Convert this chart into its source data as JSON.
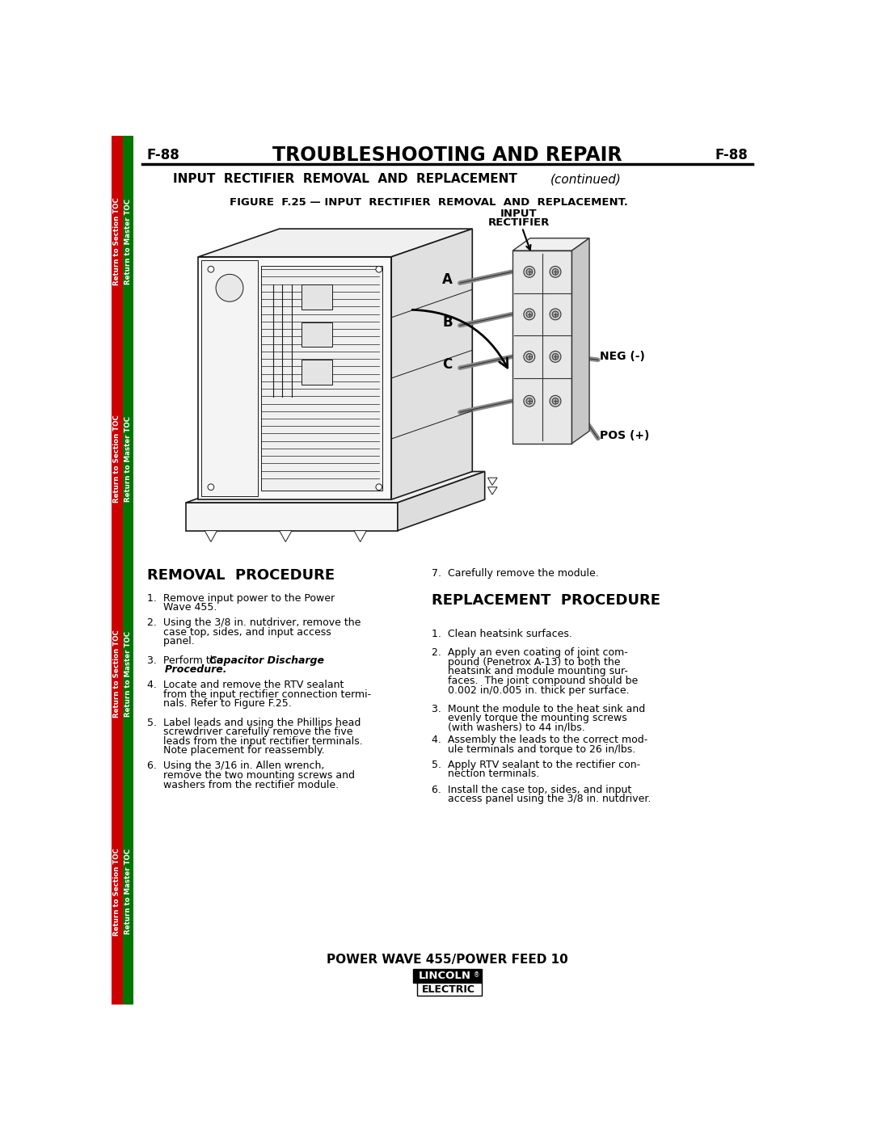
{
  "page_num": "F-88",
  "title": "TROUBLESHOOTING AND REPAIR",
  "subtitle_bold": "INPUT  RECTIFIER  REMOVAL  AND  REPLACEMENT",
  "subtitle_italic": "(continued)",
  "figure_caption": "FIGURE  F.25 — INPUT  RECTIFIER  REMOVAL  AND  REPLACEMENT.",
  "input_rectifier_label": [
    "INPUT",
    "RECTIFIER"
  ],
  "abc_labels": [
    "A",
    "B",
    "C"
  ],
  "neg_label": "NEG (-)",
  "pos_label": "POS (+)",
  "removal_title": "REMOVAL  PROCEDURE",
  "removal_lines": [
    [
      "1.  Remove input power to the Power",
      "     Wave 455."
    ],
    [
      "2.  Using the 3/8 in. nutdriver, remove the",
      "     case top, sides, and input access",
      "     panel."
    ],
    [
      "3.  Perform the ",
      "Capacitor Discharge",
      "     Procedure."
    ],
    [
      "4.  Locate and remove the RTV sealant",
      "     from the input rectifier connection termi-",
      "     nals. Refer to Figure F.25."
    ],
    [
      "5.  Label leads and using the Phillips head",
      "     screwdriver carefully remove the five",
      "     leads from the input rectifier terminals.",
      "     Note placement for reassembly."
    ],
    [
      "6.  Using the 3/16 in. Allen wrench,",
      "     remove the two mounting screws and",
      "     washers from the rectifier module."
    ]
  ],
  "replacement_title": "REPLACEMENT  PROCEDURE",
  "step7": "7.  Carefully remove the module.",
  "replacement_lines": [
    [
      "1.  Clean heatsink surfaces."
    ],
    [
      "2.  Apply an even coating of joint com-",
      "     pound (Penetrox A-13) to both the",
      "     heatsink and module mounting sur-",
      "     faces.  The joint compound should be",
      "     0.002 in/0.005 in. thick per surface."
    ],
    [
      "3.  Mount the module to the heat sink and",
      "     evenly torque the mounting screws",
      "     (with washers) to 44 in/lbs."
    ],
    [
      "4.  Assembly the leads to the correct mod-",
      "     ule terminals and torque to 26 in/lbs."
    ],
    [
      "5.  Apply RTV sealant to the rectifier con-",
      "     nection terminals."
    ],
    [
      "6.  Install the case top, sides, and input",
      "     access panel using the 3/8 in. nutdriver."
    ]
  ],
  "footer": "POWER WAVE 455/POWER FEED 10",
  "sidebar_red": "#cc0000",
  "sidebar_green": "#007700",
  "sidebar_text_red": "Return to Section TOC",
  "sidebar_text_green": "Return to Master TOC",
  "bg": "#ffffff",
  "black": "#000000"
}
